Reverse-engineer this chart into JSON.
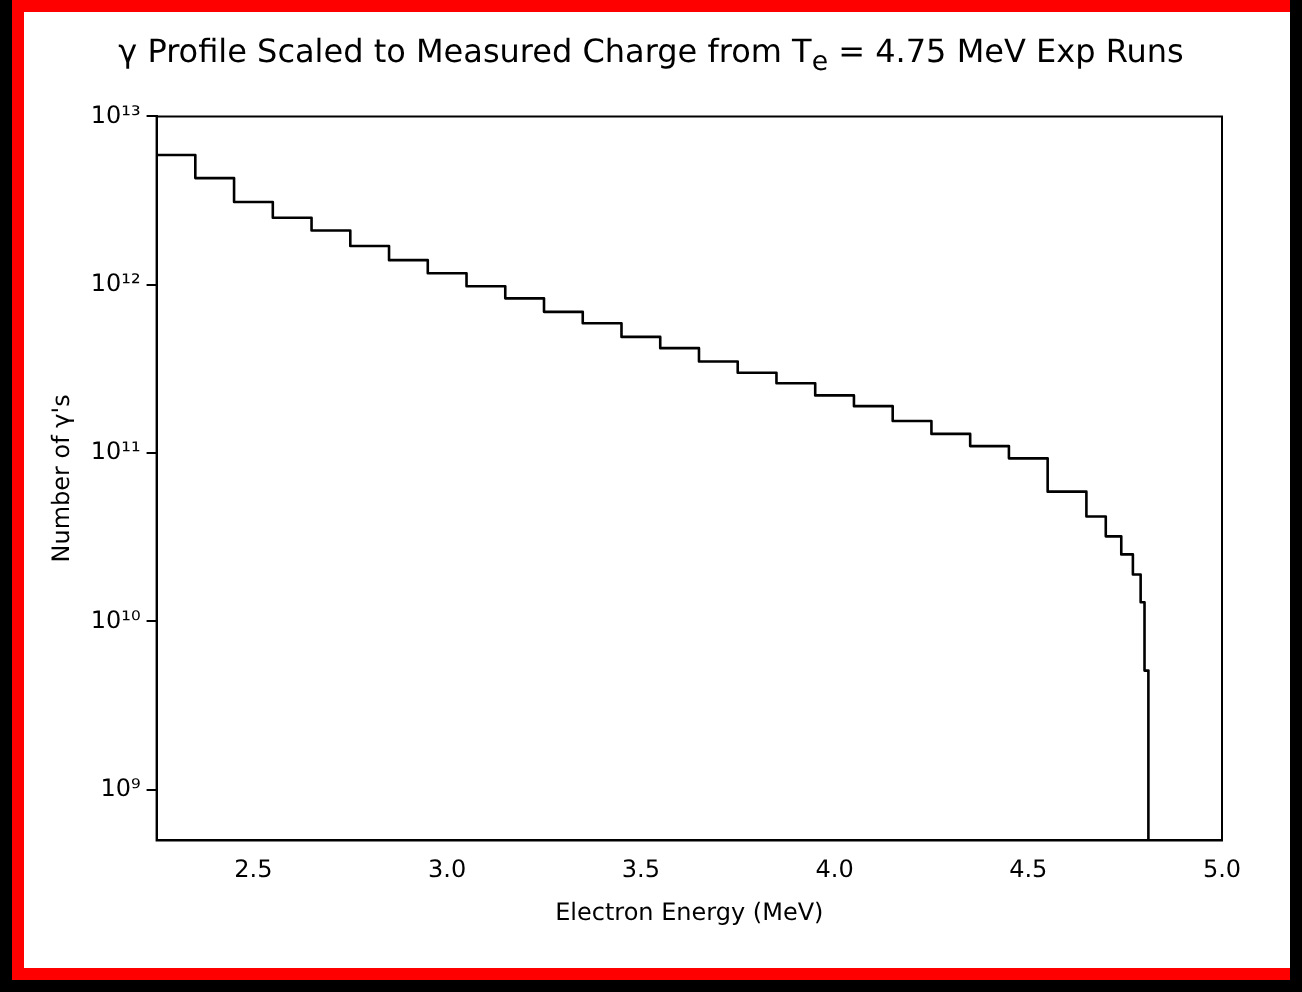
{
  "chart_data": {
    "type": "histogram",
    "title": "γ Profile Scaled to Measured Charge from T$_{e}$ =  4.75 MeV Exp Runs",
    "xlabel": "Electron Energy (MeV)",
    "ylabel": "Number of γ's",
    "bins": [
      2.25,
      2.35,
      2.45,
      2.55,
      2.65,
      2.75,
      2.85,
      2.95,
      3.05,
      3.15,
      3.25,
      3.35,
      3.45,
      3.55,
      3.65,
      3.75,
      3.85,
      3.95,
      4.05,
      4.15,
      4.25,
      4.35,
      4.45,
      4.55,
      4.65,
      4.7,
      4.74,
      4.77,
      4.79,
      4.8,
      4.81
    ],
    "values": [
      5900000000000.0,
      4300000000000.0,
      3100000000000.0,
      2500000000000.0,
      2100000000000.0,
      1700000000000.0,
      1400000000000.0,
      1170000000000.0,
      980000000000.0,
      830000000000.0,
      690000000000.0,
      590000000000.0,
      490000000000.0,
      420000000000.0,
      350000000000.0,
      300000000000.0,
      260000000000.0,
      220000000000.0,
      190000000000.0,
      155000000000.0,
      130000000000.0,
      110000000000.0,
      93000000000.0,
      59000000000.0,
      42000000000.0,
      32000000000.0,
      25000000000.0,
      19000000000.0,
      13000000000.0,
      5100000000.0
    ],
    "color": "#000000",
    "log": "y",
    "grid": false,
    "legend": false,
    "xlim": [
      2.25,
      5.0
    ],
    "xticks": [
      {
        "value": 2.5,
        "label": "2.5"
      },
      {
        "value": 3,
        "label": "3.0"
      },
      {
        "value": 3.5,
        "label": "3.5"
      },
      {
        "value": 4,
        "label": "4.0"
      },
      {
        "value": 4.5,
        "label": "4.5"
      },
      {
        "value": 5,
        "label": "5.0"
      }
    ],
    "ylim": [
      500000000.0,
      10000000000000.0
    ],
    "yticks": [
      {
        "value": 1000000000.0,
        "label": "10⁹"
      },
      {
        "value": 10000000000.0,
        "label": "10¹⁰"
      },
      {
        "value": 100000000000.0,
        "label": "10¹¹"
      },
      {
        "value": 1000000000000.0,
        "label": "10¹²"
      },
      {
        "value": 10000000000000.0,
        "label": "10¹³"
      }
    ]
  }
}
